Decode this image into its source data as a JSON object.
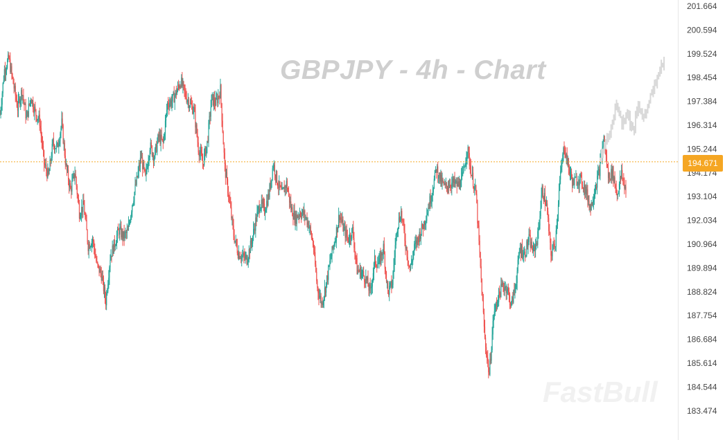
{
  "chart_data": {
    "type": "candlestick",
    "title": "GBPJPY - 4h - Chart",
    "watermark": "FastBull",
    "ylim": [
      183.0,
      202.0
    ],
    "y_ticks": [
      "201.664",
      "200.594",
      "199.524",
      "198.454",
      "197.384",
      "196.314",
      "195.244",
      "194.174",
      "193.104",
      "192.034",
      "190.964",
      "189.894",
      "188.824",
      "187.754",
      "186.684",
      "185.614",
      "184.544",
      "183.474"
    ],
    "current_price": "194.671",
    "colors": {
      "up": "#26a69a",
      "down": "#ef5350",
      "current_line": "#f5a623",
      "projection": "#d8d8d8"
    },
    "series": [
      {
        "values": [
          196.8,
          198.8,
          199.3,
          198.2,
          197.1,
          197.9,
          196.6,
          197.6,
          196.9,
          196.5,
          194.6,
          194.0,
          195.5,
          195.3,
          196.4,
          194.4,
          193.4,
          194.2,
          192.4,
          192.7,
          190.9,
          191.2,
          190.0,
          189.6,
          188.4,
          190.4,
          191.0,
          191.6,
          191.3,
          191.5,
          192.8,
          193.8,
          194.9,
          193.9,
          195.4,
          194.9,
          195.8,
          195.5,
          197.3,
          197.4,
          197.8,
          198.3,
          197.7,
          197.3,
          197.0,
          195.3,
          194.6,
          195.5,
          197.5,
          197.3,
          197.9,
          194.4,
          193.0,
          191.4,
          190.6,
          190.4,
          190.3,
          191.0,
          192.0,
          192.8,
          192.5,
          193.2,
          194.6,
          193.7,
          193.2,
          193.7,
          192.6,
          192.1,
          192.4,
          192.3,
          191.9,
          191.0,
          189.0,
          188.3,
          189.2,
          190.3,
          191.2,
          192.3,
          191.6,
          191.2,
          191.6,
          189.8,
          189.7,
          189.4,
          188.8,
          190.2,
          190.1,
          190.8,
          188.8,
          189.2,
          191.7,
          192.4,
          191.0,
          189.8,
          190.8,
          191.3,
          191.8,
          192.5,
          193.3,
          194.4,
          193.8,
          193.5,
          193.7,
          193.7,
          193.6,
          194.0,
          195.3,
          194.1,
          193.2,
          189.9,
          186.7,
          185.1,
          187.8,
          188.6,
          189.1,
          189.0,
          188.2,
          189.2,
          190.8,
          190.5,
          191.2,
          190.6,
          191.3,
          193.4,
          192.7,
          190.5,
          191.1,
          193.8,
          195.4,
          194.4,
          193.7,
          193.9,
          193.8,
          193.3,
          192.6,
          193.5,
          194.3,
          195.7,
          194.0,
          194.2,
          193.2,
          194.1,
          193.4
        ]
      },
      {
        "name": "projection",
        "values": [
          194.7,
          195.6,
          196.2,
          197.3,
          196.4,
          196.9,
          196.0,
          197.2,
          196.6,
          197.5,
          198.1,
          198.8,
          199.4
        ]
      }
    ]
  }
}
